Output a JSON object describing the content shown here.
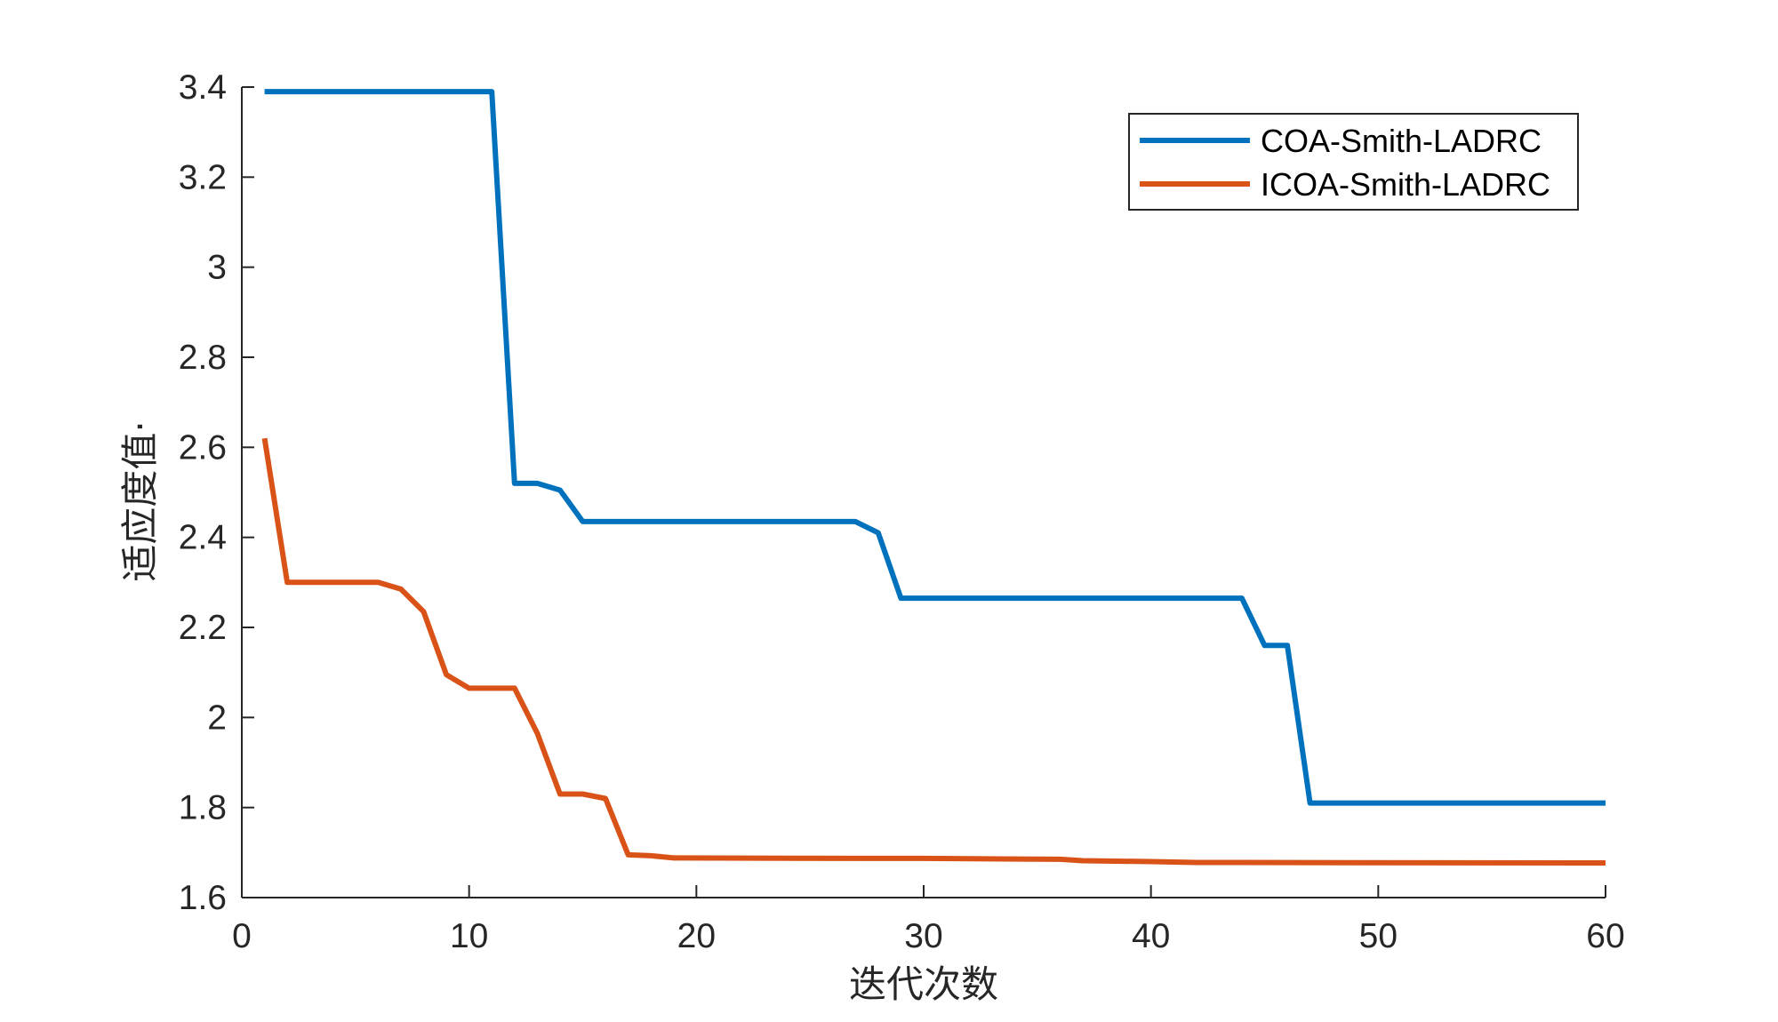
{
  "chart_data": {
    "type": "line",
    "xlabel": "迭代次数",
    "ylabel": "适应度值·",
    "xlim": [
      0,
      60
    ],
    "ylim": [
      1.6,
      3.4
    ],
    "xticks": [
      0,
      10,
      20,
      30,
      40,
      50,
      60
    ],
    "xtick_labels": [
      "0",
      "10",
      "20",
      "30",
      "40",
      "50",
      "60"
    ],
    "yticks": [
      1.6,
      1.8,
      2.0,
      2.2,
      2.4,
      2.6,
      2.8,
      3.0,
      3.2,
      3.4
    ],
    "ytick_labels": [
      "1.6",
      "1.8",
      "2",
      "2.2",
      "2.4",
      "2.6",
      "2.8",
      "3",
      "3.2",
      "3.4"
    ],
    "grid": false,
    "legend_position": "top-right",
    "series": [
      {
        "name": "COA-Smith-LADRC",
        "color": "#0072BD",
        "points": [
          [
            1,
            3.39
          ],
          [
            11,
            3.39
          ],
          [
            12,
            2.52
          ],
          [
            13,
            2.52
          ],
          [
            14,
            2.505
          ],
          [
            15,
            2.435
          ],
          [
            27,
            2.435
          ],
          [
            28,
            2.41
          ],
          [
            29,
            2.265
          ],
          [
            44,
            2.265
          ],
          [
            45,
            2.16
          ],
          [
            46,
            2.16
          ],
          [
            47,
            1.81
          ],
          [
            60,
            1.81
          ]
        ]
      },
      {
        "name": "ICOA-Smith-LADRC",
        "color": "#D95319",
        "points": [
          [
            1,
            2.62
          ],
          [
            2,
            2.3
          ],
          [
            6,
            2.3
          ],
          [
            7,
            2.285
          ],
          [
            8,
            2.235
          ],
          [
            9,
            2.095
          ],
          [
            10,
            2.065
          ],
          [
            12,
            2.065
          ],
          [
            13,
            1.965
          ],
          [
            14,
            1.83
          ],
          [
            15,
            1.83
          ],
          [
            16,
            1.82
          ],
          [
            17,
            1.695
          ],
          [
            18,
            1.693
          ],
          [
            19,
            1.688
          ],
          [
            27,
            1.687
          ],
          [
            30,
            1.687
          ],
          [
            36,
            1.685
          ],
          [
            37,
            1.682
          ],
          [
            40,
            1.68
          ],
          [
            42,
            1.678
          ],
          [
            60,
            1.677
          ]
        ]
      }
    ]
  }
}
